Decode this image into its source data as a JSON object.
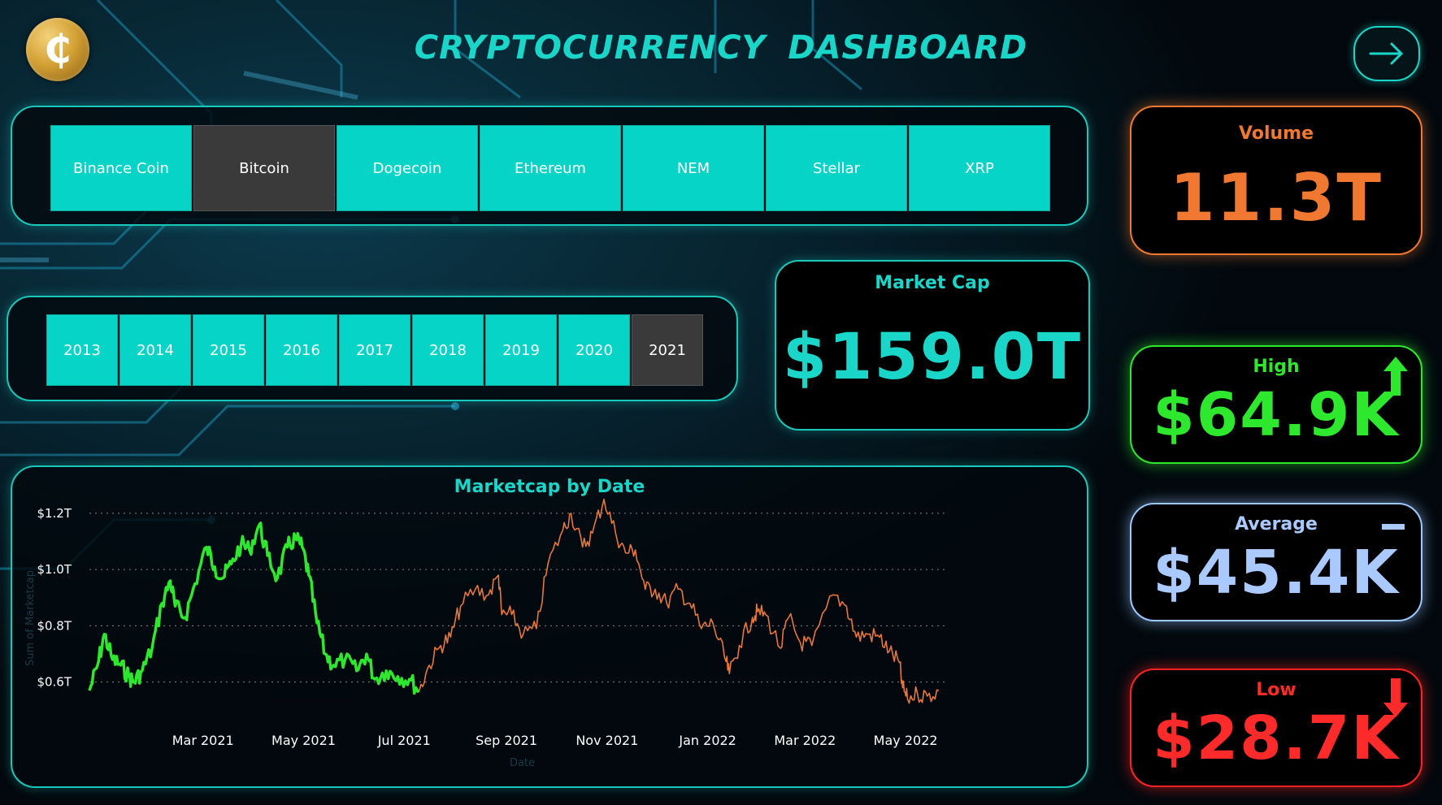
{
  "header": {
    "title": "CRYPTOCURRENCY  DASHBOARD",
    "logo_icon": "bitcoin-coin-icon",
    "nav_icon": "arrow-right-icon"
  },
  "coins": {
    "items": [
      "Binance Coin",
      "Bitcoin",
      "Dogecoin",
      "Ethereum",
      "NEM",
      "Stellar",
      "XRP"
    ],
    "selected": "Bitcoin"
  },
  "years": {
    "items": [
      "2013",
      "2014",
      "2015",
      "2016",
      "2017",
      "2018",
      "2019",
      "2020",
      "2021"
    ],
    "selected": "2021"
  },
  "kpis": {
    "market_cap": {
      "label": "Market Cap",
      "value": "$159.0T"
    },
    "volume": {
      "label": "Volume",
      "value": "11.3T"
    },
    "high": {
      "label": "High",
      "value": "$64.9K",
      "icon": "arrow-up-icon"
    },
    "average": {
      "label": "Average",
      "value": "$45.4K",
      "icon": "minus-icon"
    },
    "low": {
      "label": "Low",
      "value": "$28.7K",
      "icon": "arrow-down-icon"
    }
  },
  "colors": {
    "accent": "#19d6c8",
    "tile": "#05d4c6",
    "tile_selected": "#3a3a3a",
    "volume": "#f07830",
    "high": "#2ee82e",
    "average": "#a9c9ff",
    "low": "#ff2a2a",
    "series_selected": "#2ee82e",
    "series_other": "#e8763a"
  },
  "chart_data": {
    "type": "line",
    "title": "Marketcap by Date",
    "xlabel": "Date",
    "ylabel": "Sum of Marketcap",
    "x_ticks": [
      "Mar 2021",
      "May 2021",
      "Jul 2021",
      "Sep 2021",
      "Nov 2021",
      "Jan 2022",
      "Mar 2022",
      "May 2022"
    ],
    "y_ticks": [
      "$0.6T",
      "$0.8T",
      "$1.0T",
      "$1.2T"
    ],
    "y_tick_values": [
      0.6,
      0.8,
      1.0,
      1.2
    ],
    "ylim": [
      0.55,
      1.22
    ],
    "xlim": [
      "2021-01-01",
      "2022-05-31"
    ],
    "grid": "horizontal dotted",
    "series": [
      {
        "highlighted": true,
        "points": [
          [
            "2021-01-01",
            0.57
          ],
          [
            "2021-01-06",
            0.66
          ],
          [
            "2021-01-10",
            0.77
          ],
          [
            "2021-01-15",
            0.68
          ],
          [
            "2021-01-20",
            0.66
          ],
          [
            "2021-01-25",
            0.62
          ],
          [
            "2021-01-28",
            0.6
          ],
          [
            "2021-02-02",
            0.64
          ],
          [
            "2021-02-08",
            0.72
          ],
          [
            "2021-02-14",
            0.88
          ],
          [
            "2021-02-19",
            0.96
          ],
          [
            "2021-02-22",
            0.87
          ],
          [
            "2021-02-28",
            0.83
          ],
          [
            "2021-03-06",
            0.95
          ],
          [
            "2021-03-13, ",
            1.08
          ],
          [
            "2021-03-18",
            1.01
          ],
          [
            "2021-03-23",
            0.97
          ],
          [
            "2021-03-28",
            1.02
          ],
          [
            "2021-04-03",
            1.09
          ],
          [
            "2021-04-08",
            1.07
          ],
          [
            "2021-04-14",
            1.16
          ],
          [
            "2021-04-19",
            1.05
          ],
          [
            "2021-04-25",
            0.97
          ],
          [
            "2021-05-01",
            1.08
          ],
          [
            "2021-05-06",
            1.11
          ],
          [
            "2021-05-10",
            1.08
          ],
          [
            "2021-05-14",
            0.98
          ],
          [
            "2021-05-19",
            0.81
          ],
          [
            "2021-05-24",
            0.7
          ],
          [
            "2021-05-29",
            0.66
          ],
          [
            "2021-06-05",
            0.68
          ],
          [
            "2021-06-12",
            0.64
          ],
          [
            "2021-06-18",
            0.7
          ],
          [
            "2021-06-23",
            0.61
          ],
          [
            "2021-06-30",
            0.64
          ],
          [
            "2021-07-07",
            0.62
          ],
          [
            "2021-07-14",
            0.61
          ],
          [
            "2021-07-20",
            0.57
          ]
        ]
      },
      {
        "highlighted": false,
        "points": [
          [
            "2021-07-20",
            0.57
          ],
          [
            "2021-07-26",
            0.66
          ],
          [
            "2021-08-02",
            0.73
          ],
          [
            "2021-08-08",
            0.76
          ],
          [
            "2021-08-14",
            0.87
          ],
          [
            "2021-08-23",
            0.93
          ],
          [
            "2021-08-31",
            0.91
          ],
          [
            "2021-09-06",
            0.98
          ],
          [
            "2021-09-08",
            0.84
          ],
          [
            "2021-09-14",
            0.84
          ],
          [
            "2021-09-21",
            0.77
          ],
          [
            "2021-09-29",
            0.79
          ],
          [
            "2021-10-06",
            1.02
          ],
          [
            "2021-10-15",
            1.14
          ],
          [
            "2021-10-20",
            1.2
          ],
          [
            "2021-10-27",
            1.08
          ],
          [
            "2021-11-02",
            1.13
          ],
          [
            "2021-11-09",
            1.25
          ],
          [
            "2021-11-16",
            1.13
          ],
          [
            "2021-11-22",
            1.06
          ],
          [
            "2021-11-28",
            1.07
          ],
          [
            "2021-12-04",
            0.93
          ],
          [
            "2021-12-10",
            0.93
          ],
          [
            "2021-12-17",
            0.88
          ],
          [
            "2021-12-24",
            0.93
          ],
          [
            "2021-12-31",
            0.88
          ],
          [
            "2022-01-07",
            0.79
          ],
          [
            "2022-01-14",
            0.81
          ],
          [
            "2022-01-21",
            0.69
          ],
          [
            "2022-01-24",
            0.63
          ],
          [
            "2022-01-30",
            0.73
          ],
          [
            "2022-02-07",
            0.83
          ],
          [
            "2022-02-10",
            0.85
          ],
          [
            "2022-02-15",
            0.84
          ],
          [
            "2022-02-24",
            0.72
          ],
          [
            "2022-03-01",
            0.83
          ],
          [
            "2022-03-08",
            0.74
          ],
          [
            "2022-03-15",
            0.73
          ],
          [
            "2022-03-28",
            0.91
          ],
          [
            "2022-04-05",
            0.87
          ],
          [
            "2022-04-11",
            0.76
          ],
          [
            "2022-04-18",
            0.77
          ],
          [
            "2022-04-25",
            0.76
          ],
          [
            "2022-05-01",
            0.71
          ],
          [
            "2022-05-07",
            0.67
          ],
          [
            "2022-05-09",
            0.58
          ],
          [
            "2022-05-12",
            0.54
          ],
          [
            "2022-05-18",
            0.56
          ],
          [
            "2022-05-24",
            0.55
          ],
          [
            "2022-05-31",
            0.57
          ]
        ]
      }
    ]
  }
}
